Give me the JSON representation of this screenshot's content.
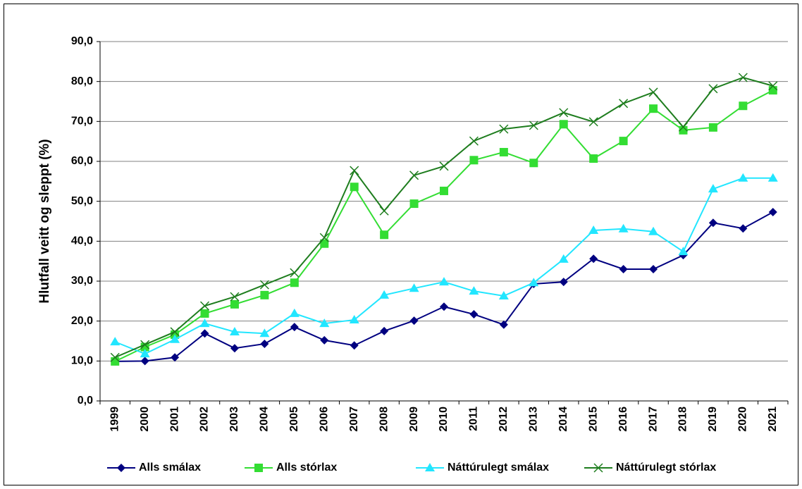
{
  "chart_data": {
    "type": "line",
    "y_label": "Hlutfall veitt og sleppt (%)",
    "categories": [
      "1999",
      "2000",
      "2001",
      "2002",
      "2003",
      "2004",
      "2005",
      "2006",
      "2007",
      "2008",
      "2009",
      "2010",
      "2011",
      "2012",
      "2013",
      "2014",
      "2015",
      "2016",
      "2017",
      "2018",
      "2019",
      "2020",
      "2021"
    ],
    "series": [
      {
        "name": "Alls smálax",
        "color": "#000080",
        "marker": "diamond",
        "values": [
          9.9,
          10.0,
          10.9,
          16.9,
          13.2,
          14.3,
          18.5,
          15.2,
          13.9,
          17.5,
          20.1,
          23.6,
          21.7,
          19.1,
          29.3,
          29.8,
          35.6,
          33.0,
          33.0,
          36.5,
          44.6,
          43.2,
          47.3
        ]
      },
      {
        "name": "Alls stórlax",
        "color": "#33dd33",
        "marker": "square",
        "values": [
          9.9,
          13.5,
          16.6,
          21.9,
          24.2,
          26.5,
          29.6,
          39.4,
          53.6,
          41.6,
          49.4,
          52.6,
          60.3,
          62.3,
          59.6,
          69.3,
          60.7,
          65.1,
          73.2,
          67.8,
          68.5,
          73.9,
          77.8
        ]
      },
      {
        "name": "Náttúrulegt smálax",
        "color": "#22e6ff",
        "marker": "triangle",
        "values": [
          14.8,
          11.8,
          15.4,
          19.4,
          17.3,
          16.9,
          21.9,
          19.4,
          20.3,
          26.5,
          28.2,
          29.8,
          27.5,
          26.3,
          29.6,
          35.5,
          42.7,
          43.1,
          42.4,
          37.4,
          53.1,
          55.8,
          55.8
        ]
      },
      {
        "name": "Náttúrulegt stórlax",
        "color": "#1e7d1e",
        "marker": "x",
        "values": [
          10.9,
          14.1,
          17.3,
          23.8,
          26.1,
          29.1,
          32.1,
          40.9,
          57.7,
          47.6,
          56.5,
          58.8,
          65.1,
          68.1,
          69.0,
          72.2,
          69.9,
          74.5,
          77.3,
          68.6,
          78.2,
          81.0,
          78.9
        ]
      }
    ],
    "ylim": [
      0,
      90
    ],
    "yticks": [
      {
        "value": 0,
        "label": "0,0"
      },
      {
        "value": 10,
        "label": "10,0"
      },
      {
        "value": 20,
        "label": "20,0"
      },
      {
        "value": 30,
        "label": "30,0"
      },
      {
        "value": 40,
        "label": "40,0"
      },
      {
        "value": 50,
        "label": "50,0"
      },
      {
        "value": 60,
        "label": "60,0"
      },
      {
        "value": 70,
        "label": "70,0"
      },
      {
        "value": 80,
        "label": "80,0"
      },
      {
        "value": 90,
        "label": "90,0"
      }
    ],
    "grid": true,
    "legend": "bottom"
  }
}
